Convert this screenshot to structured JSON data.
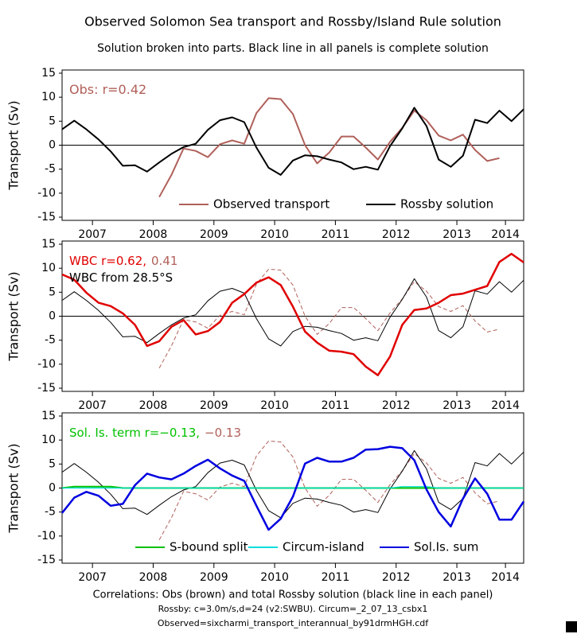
{
  "title": "Observed Solomon Sea transport and Rossby/Island Rule solution",
  "subtitle": "Solution broken into parts. Black line in all panels is complete solution",
  "footer": [
    "Correlations: Obs (brown) and total Rossby solution (black line in each panel)",
    "Rossby: c=3.0m/s,d=24 (v2:SWBU). Circum=_2_07_13_csbx1",
    "Observed=sixcharmi_transport_interannual_by91drmHGH.cdf"
  ],
  "chart_data": [
    {
      "type": "line",
      "ylabel": "Transport (Sv)",
      "x": [
        2007.0,
        2007.2,
        2007.4,
        2007.6,
        2007.8,
        2008.0,
        2008.2,
        2008.4,
        2008.6,
        2008.8,
        2009.0,
        2009.2,
        2009.4,
        2009.6,
        2009.8,
        2010.0,
        2010.2,
        2010.4,
        2010.6,
        2010.8,
        2011.0,
        2011.2,
        2011.4,
        2011.6,
        2011.8,
        2012.0,
        2012.2,
        2012.4,
        2012.6,
        2012.8,
        2013.0,
        2013.2,
        2013.4,
        2013.6,
        2013.8,
        2014.0,
        2014.2,
        2014.4,
        2014.6
      ],
      "xlim": [
        2007,
        2014.6
      ],
      "xticks": [
        {
          "value": 2007.5,
          "label": "2007"
        },
        {
          "value": 2008.5,
          "label": "2008"
        },
        {
          "value": 2009.5,
          "label": "2009"
        },
        {
          "value": 2010.5,
          "label": "2010"
        },
        {
          "value": 2011.5,
          "label": "2011"
        },
        {
          "value": 2012.5,
          "label": "2012"
        },
        {
          "value": 2013.5,
          "label": "2013"
        },
        {
          "value": 2014.3,
          "label": "2014"
        }
      ],
      "ylim": [
        -15,
        15
      ],
      "yticks": [
        -15,
        -10,
        -5,
        0,
        5,
        10,
        15
      ],
      "hline": 0,
      "annotations": [
        [
          {
            "text": "Obs: r=0.42",
            "color": "#b0605a"
          }
        ]
      ],
      "series": [
        {
          "name": "Observed transport",
          "color": "#b0605a",
          "width": 2,
          "dash": false,
          "values": [
            null,
            null,
            null,
            null,
            null,
            null,
            null,
            null,
            -10.8,
            -6.2,
            -0.7,
            -1.2,
            -2.5,
            0.2,
            1,
            0.3,
            6.7,
            9.8,
            9.6,
            6.5,
            0,
            -3.8,
            -1.5,
            1.8,
            1.8,
            -0.5,
            -3,
            0.7,
            3.6,
            7.2,
            5.2,
            2,
            1,
            2.2,
            -1,
            -3.3,
            -2.7,
            null,
            null
          ]
        },
        {
          "name": "Rossby solution",
          "color": "#000000",
          "width": 2,
          "dash": false,
          "values": [
            3.3,
            5.1,
            3.3,
            1.2,
            -1.3,
            -4.3,
            -4.2,
            -5.5,
            -3.6,
            -1.8,
            -0.4,
            0.3,
            3.2,
            5.2,
            5.8,
            4.8,
            -0.5,
            -4.7,
            -6.2,
            -3.2,
            -2.1,
            -2.3,
            -3,
            -3.6,
            -5,
            -4.5,
            -5.1,
            -0.2,
            3.5,
            7.8,
            4,
            -3,
            -4.5,
            -2.2,
            5.3,
            4.6,
            7.2,
            5,
            7.5
          ]
        }
      ]
    },
    {
      "type": "line",
      "ylabel": "Transport (Sv)",
      "x": [
        2007.0,
        2007.2,
        2007.4,
        2007.6,
        2007.8,
        2008.0,
        2008.2,
        2008.4,
        2008.6,
        2008.8,
        2009.0,
        2009.2,
        2009.4,
        2009.6,
        2009.8,
        2010.0,
        2010.2,
        2010.4,
        2010.6,
        2010.8,
        2011.0,
        2011.2,
        2011.4,
        2011.6,
        2011.8,
        2012.0,
        2012.2,
        2012.4,
        2012.6,
        2012.8,
        2013.0,
        2013.2,
        2013.4,
        2013.6,
        2013.8,
        2014.0,
        2014.2,
        2014.4,
        2014.6
      ],
      "xlim": [
        2007,
        2014.6
      ],
      "xticks": [
        {
          "value": 2007.5,
          "label": "2007"
        },
        {
          "value": 2008.5,
          "label": "2008"
        },
        {
          "value": 2009.5,
          "label": "2009"
        },
        {
          "value": 2010.5,
          "label": "2010"
        },
        {
          "value": 2011.5,
          "label": "2011"
        },
        {
          "value": 2012.5,
          "label": "2012"
        },
        {
          "value": 2013.5,
          "label": "2013"
        },
        {
          "value": 2014.3,
          "label": "2014"
        }
      ],
      "ylim": [
        -15,
        15
      ],
      "yticks": [
        -15,
        -10,
        -5,
        0,
        5,
        10,
        15
      ],
      "hline": 0,
      "annotations": [
        [
          {
            "text": "WBC r=0.62,",
            "color": "#e00000"
          },
          {
            "text": "0.41",
            "color": "#b0605a"
          }
        ],
        [
          {
            "text": "WBC from 28.5°S",
            "color": "#000000"
          }
        ]
      ],
      "series": [
        {
          "color": "#b0605a",
          "width": 1,
          "dash": true,
          "values": [
            null,
            null,
            null,
            null,
            null,
            null,
            null,
            null,
            -10.8,
            -6.2,
            -0.7,
            -1.2,
            -2.5,
            0.2,
            1,
            0.3,
            6.7,
            9.8,
            9.6,
            6.5,
            0,
            -3.8,
            -1.5,
            1.8,
            1.8,
            -0.5,
            -3,
            0.7,
            3.6,
            7.2,
            5.2,
            2,
            1,
            2.2,
            -1,
            -3.3,
            -2.7,
            null,
            null
          ]
        },
        {
          "color": "#000000",
          "width": 1,
          "dash": false,
          "values": [
            3.3,
            5.1,
            3.3,
            1.2,
            -1.3,
            -4.3,
            -4.2,
            -5.5,
            -3.6,
            -1.8,
            -0.4,
            0.3,
            3.2,
            5.2,
            5.8,
            4.8,
            -0.5,
            -4.7,
            -6.2,
            -3.2,
            -2.1,
            -2.3,
            -3,
            -3.6,
            -5,
            -4.5,
            -5.1,
            -0.2,
            3.5,
            7.8,
            4,
            -3,
            -4.5,
            -2.2,
            5.3,
            4.6,
            7.2,
            5,
            7.5
          ]
        },
        {
          "color": "#e00000",
          "width": 2.5,
          "dash": false,
          "values": [
            8.7,
            7.6,
            4.9,
            2.8,
            2.1,
            0.6,
            -1.8,
            -6.2,
            -5.2,
            -2.2,
            -0.8,
            -3.8,
            -3.1,
            -1.2,
            2.8,
            4.6,
            7,
            8.1,
            6.5,
            2,
            -3.2,
            -5.5,
            -7.2,
            -7.4,
            -7.9,
            -10.5,
            -12.3,
            -8.4,
            -1.8,
            1.3,
            1.6,
            2.8,
            4.4,
            4.7,
            5.5,
            6.3,
            11.3,
            13,
            11.2
          ]
        }
      ]
    },
    {
      "type": "line",
      "ylabel": "Transport (Sv)",
      "x": [
        2007.0,
        2007.2,
        2007.4,
        2007.6,
        2007.8,
        2008.0,
        2008.2,
        2008.4,
        2008.6,
        2008.8,
        2009.0,
        2009.2,
        2009.4,
        2009.6,
        2009.8,
        2010.0,
        2010.2,
        2010.4,
        2010.6,
        2010.8,
        2011.0,
        2011.2,
        2011.4,
        2011.6,
        2011.8,
        2012.0,
        2012.2,
        2012.4,
        2012.6,
        2012.8,
        2013.0,
        2013.2,
        2013.4,
        2013.6,
        2013.8,
        2014.0,
        2014.2,
        2014.4,
        2014.6
      ],
      "xlim": [
        2007,
        2014.6
      ],
      "xticks": [
        {
          "value": 2007.5,
          "label": "2007"
        },
        {
          "value": 2008.5,
          "label": "2008"
        },
        {
          "value": 2009.5,
          "label": "2009"
        },
        {
          "value": 2010.5,
          "label": "2010"
        },
        {
          "value": 2011.5,
          "label": "2011"
        },
        {
          "value": 2012.5,
          "label": "2012"
        },
        {
          "value": 2013.5,
          "label": "2013"
        },
        {
          "value": 2014.3,
          "label": "2014"
        }
      ],
      "ylim": [
        -15,
        15
      ],
      "yticks": [
        -15,
        -10,
        -5,
        0,
        5,
        10,
        15
      ],
      "hline": 0,
      "annotations": [
        [
          {
            "text": "Sol. Is. term r=−0.13,",
            "color": "#00c000"
          },
          {
            "text": "−0.13",
            "color": "#b0605a"
          }
        ]
      ],
      "series": [
        {
          "color": "#b0605a",
          "width": 1,
          "dash": true,
          "values": [
            null,
            null,
            null,
            null,
            null,
            null,
            null,
            null,
            -10.8,
            -6.2,
            -0.7,
            -1.2,
            -2.5,
            0.2,
            1,
            0.3,
            6.7,
            9.8,
            9.6,
            6.5,
            0,
            -3.8,
            -1.5,
            1.8,
            1.8,
            -0.5,
            -3,
            0.7,
            3.6,
            7.2,
            5.2,
            2,
            1,
            2.2,
            -1,
            -3.3,
            -2.7,
            null,
            null
          ]
        },
        {
          "color": "#000000",
          "width": 1,
          "dash": false,
          "values": [
            3.3,
            5.1,
            3.3,
            1.2,
            -1.3,
            -4.3,
            -4.2,
            -5.5,
            -3.6,
            -1.8,
            -0.4,
            0.3,
            3.2,
            5.2,
            5.8,
            4.8,
            -0.5,
            -4.7,
            -6.2,
            -3.2,
            -2.1,
            -2.3,
            -3,
            -3.6,
            -5,
            -4.5,
            -5.1,
            -0.2,
            3.5,
            7.8,
            4,
            -3,
            -4.5,
            -2.2,
            5.3,
            4.6,
            7.2,
            5,
            7.5
          ]
        },
        {
          "name": "S-bound split",
          "color": "#00c000",
          "width": 2,
          "dash": false,
          "values": [
            0,
            0.3,
            0.3,
            0.3,
            0.3,
            0,
            0,
            0,
            0,
            0,
            0,
            0,
            0,
            0,
            0,
            0,
            0,
            0,
            0,
            0,
            0,
            0,
            0,
            0,
            0,
            0,
            0,
            0,
            0,
            0,
            0,
            0,
            0,
            0,
            0,
            0,
            0,
            0,
            0
          ]
        },
        {
          "name": "Circum-island",
          "color": "#00dede",
          "width": 1.2,
          "dash": false,
          "values": [
            0,
            0,
            0,
            0,
            0,
            0,
            0,
            0,
            0,
            0,
            0,
            0,
            0,
            0,
            0,
            0,
            0,
            0,
            0,
            0,
            0,
            0,
            0,
            0,
            0,
            0,
            0,
            0,
            0.3,
            0.3,
            0.3,
            0,
            0,
            0,
            0,
            0,
            0,
            0,
            0
          ]
        },
        {
          "name": "Sol.Is. sum",
          "color": "#0000e0",
          "width": 2.5,
          "dash": false,
          "values": [
            -5.2,
            -2,
            -0.8,
            -1.6,
            -3.7,
            -3.3,
            0.6,
            3,
            2.2,
            1.8,
            3,
            4.6,
            5.9,
            4.1,
            2.6,
            1.5,
            -3.7,
            -8.7,
            -6.4,
            -1.8,
            5.1,
            6.3,
            5.5,
            5.5,
            6.3,
            8,
            8.1,
            8.6,
            8.3,
            5.8,
            -0.3,
            -5,
            -8,
            -2.2,
            2,
            -1.2,
            -6.6,
            -6.6,
            -2.8
          ]
        }
      ]
    }
  ]
}
